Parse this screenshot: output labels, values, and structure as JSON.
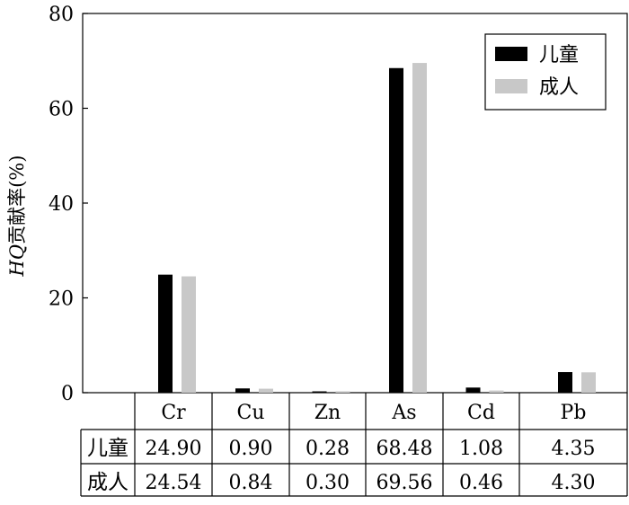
{
  "chart_data": {
    "type": "bar",
    "ylabel": "HQ贡献率(%)",
    "ylabel_italic_part": "HQ",
    "ylabel_rest": "贡献率(%)",
    "ylim": [
      0,
      80
    ],
    "yticks": [
      "0",
      "20",
      "40",
      "60",
      "80"
    ],
    "categories": [
      "Cr",
      "Cu",
      "Zn",
      "As",
      "Cd",
      "Pb"
    ],
    "series": [
      {
        "name": "儿童",
        "color": "#000000",
        "values": [
          24.9,
          0.9,
          0.28,
          68.48,
          1.08,
          4.35
        ]
      },
      {
        "name": "成人",
        "color": "#c8c8c8",
        "values": [
          24.54,
          0.84,
          0.3,
          69.56,
          0.46,
          4.3
        ]
      }
    ],
    "legend_position": "top-right",
    "table": {
      "row_labels": [
        "儿童",
        "成人"
      ],
      "rows": [
        [
          "24.90",
          "0.90",
          "0.28",
          "68.48",
          "1.08",
          "4.35"
        ],
        [
          "24.54",
          "0.84",
          "0.30",
          "69.56",
          "0.46",
          "4.30"
        ]
      ]
    }
  }
}
